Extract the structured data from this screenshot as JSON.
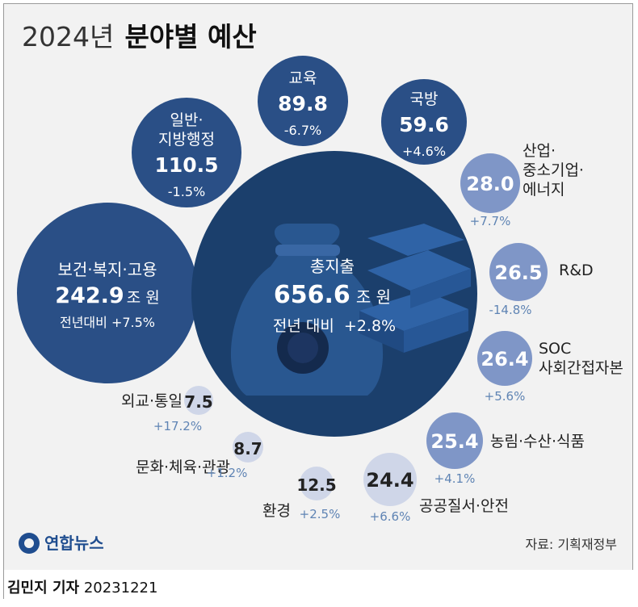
{
  "chart_data": {
    "type": "bubble",
    "title_year": "2024년",
    "title_main": "분야별 예산",
    "total": {
      "label": "총지출",
      "value": "656.6",
      "unit": "조 원",
      "change_prefix": "전년 대비",
      "change": "+2.8%"
    },
    "series": [
      {
        "name": "보건·복지·고용",
        "value": 242.9,
        "display": "242.9",
        "unit": "조 원",
        "change_prefix": "전년대비",
        "change": "+7.5%"
      },
      {
        "name": "교육",
        "value": 89.8,
        "display": "89.8",
        "change": "-6.7%"
      },
      {
        "name": "일반·지방행정",
        "value": 110.5,
        "display": "110.5",
        "change": "-1.5%"
      },
      {
        "name": "국방",
        "value": 59.6,
        "display": "59.6",
        "change": "+4.6%"
      },
      {
        "name": "산업·중소기업·에너지",
        "value": 28.0,
        "display": "28.0",
        "change": "+7.7%"
      },
      {
        "name": "R&D",
        "value": 26.5,
        "display": "26.5",
        "change": "-14.8%"
      },
      {
        "name": "SOC 사회간접자본",
        "value": 26.4,
        "display": "26.4",
        "change": "+5.6%"
      },
      {
        "name": "농림·수산·식품",
        "value": 25.4,
        "display": "25.4",
        "change": "+4.1%"
      },
      {
        "name": "공공질서·안전",
        "value": 24.4,
        "display": "24.4",
        "change": "+6.6%"
      },
      {
        "name": "환경",
        "value": 12.5,
        "display": "12.5",
        "change": "+2.5%"
      },
      {
        "name": "문화·체육·관광",
        "value": 8.7,
        "display": "8.7",
        "change": "+1.2%"
      },
      {
        "name": "외교·통일",
        "value": 7.5,
        "display": "7.5",
        "change": "+17.2%"
      }
    ],
    "source": "자료: 기획재정부",
    "logo": "연합뉴스",
    "colors": {
      "dark": "#2a4f86",
      "mid": "#7f96c7",
      "light": "#cfd6e8",
      "change": "#5f84b4"
    }
  },
  "footer": {
    "reporter": "김민지 기자",
    "date": "20231221"
  }
}
